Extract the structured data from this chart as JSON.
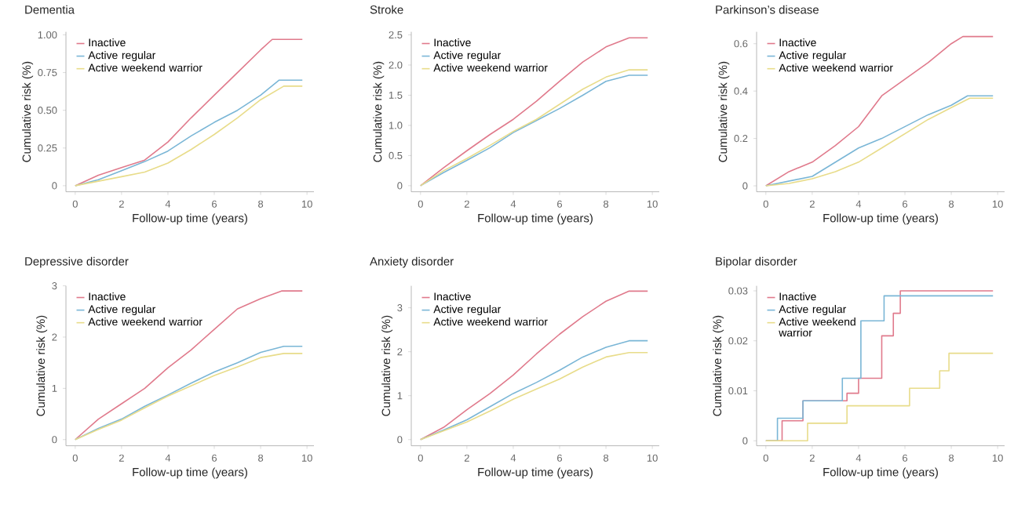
{
  "chart_data": [
    {
      "type": "line",
      "title": "Dementia",
      "xlabel": "Follow-up time (years)",
      "ylabel": "Cumulative risk (%)",
      "legend": "top left",
      "grid": false,
      "xlim": [
        -0.4,
        10.3
      ],
      "xticks": [
        0,
        2,
        4,
        6,
        8,
        10
      ],
      "ylim": [
        -0.04,
        1.02
      ],
      "yticks": [
        0,
        0.25,
        {
          "value": 0.5,
          "label": "0.50"
        },
        0.75,
        {
          "value": 1,
          "label": "1.00"
        }
      ],
      "series": [
        {
          "name": "Inactive",
          "color": "#e07a8c",
          "x": [
            0,
            1,
            2,
            3,
            4,
            5,
            6,
            7,
            8,
            8.5,
            9.8
          ],
          "values": [
            0,
            0.07,
            0.12,
            0.17,
            0.29,
            0.45,
            0.6,
            0.75,
            0.9,
            0.97,
            0.97
          ]
        },
        {
          "name": "Active regular",
          "color": "#7ab6d6",
          "x": [
            0,
            1,
            2,
            3,
            4,
            5,
            6,
            7,
            8,
            8.8,
            9.8
          ],
          "values": [
            0,
            0.04,
            0.1,
            0.16,
            0.23,
            0.33,
            0.42,
            0.5,
            0.6,
            0.7,
            0.7
          ]
        },
        {
          "name": "Active weekend warrior",
          "color": "#e8dc8a",
          "x": [
            0,
            1,
            2,
            3,
            4,
            5,
            6,
            7,
            8,
            9,
            9.8
          ],
          "values": [
            0,
            0.03,
            0.06,
            0.09,
            0.15,
            0.24,
            0.34,
            0.45,
            0.57,
            0.66,
            0.66
          ]
        }
      ]
    },
    {
      "type": "line",
      "title": "Stroke",
      "xlabel": "Follow-up time (years)",
      "ylabel": "Cumulative risk (%)",
      "legend": "top left",
      "grid": false,
      "xlim": [
        -0.4,
        10.3
      ],
      "xticks": [
        0,
        2,
        4,
        6,
        8,
        10
      ],
      "ylim": [
        -0.1,
        2.55
      ],
      "yticks": [
        0,
        0.5,
        {
          "value": 1,
          "label": "1.0"
        },
        1.5,
        {
          "value": 2,
          "label": "2.0"
        },
        2.5
      ],
      "series": [
        {
          "name": "Inactive",
          "color": "#e07a8c",
          "x": [
            0,
            1,
            2,
            3,
            4,
            5,
            6,
            7,
            8,
            9,
            9.8
          ],
          "values": [
            0,
            0.3,
            0.58,
            0.85,
            1.1,
            1.4,
            1.73,
            2.05,
            2.3,
            2.45,
            2.45
          ]
        },
        {
          "name": "Active regular",
          "color": "#7ab6d6",
          "x": [
            0,
            1,
            2,
            3,
            4,
            5,
            6,
            7,
            8,
            9,
            9.8
          ],
          "values": [
            0,
            0.22,
            0.42,
            0.63,
            0.88,
            1.08,
            1.28,
            1.5,
            1.73,
            1.83,
            1.83
          ]
        },
        {
          "name": "Active weekend warrior",
          "color": "#e8dc8a",
          "x": [
            0,
            1,
            2,
            3,
            4,
            5,
            6,
            7,
            8,
            9,
            9.8
          ],
          "values": [
            0,
            0.25,
            0.45,
            0.67,
            0.9,
            1.1,
            1.35,
            1.6,
            1.8,
            1.92,
            1.92
          ]
        }
      ]
    },
    {
      "type": "line",
      "title": "Parkinson’s disease",
      "xlabel": "Follow-up time (years)",
      "ylabel": "Cumulative risk (%)",
      "legend": "top left",
      "grid": false,
      "xlim": [
        -0.4,
        10.3
      ],
      "xticks": [
        0,
        2,
        4,
        6,
        8,
        10
      ],
      "ylim": [
        -0.025,
        0.65
      ],
      "yticks": [
        0,
        0.2,
        0.4,
        0.6
      ],
      "series": [
        {
          "name": "Inactive",
          "color": "#e07a8c",
          "x": [
            0,
            1,
            2,
            3,
            4,
            5,
            6,
            7,
            8,
            8.5,
            9.8
          ],
          "values": [
            0,
            0.06,
            0.1,
            0.17,
            0.25,
            0.38,
            0.45,
            0.52,
            0.6,
            0.63,
            0.63
          ]
        },
        {
          "name": "Active regular",
          "color": "#7ab6d6",
          "x": [
            0,
            1,
            2,
            3,
            4,
            5,
            6,
            7,
            8,
            8.7,
            9.8
          ],
          "values": [
            0,
            0.02,
            0.04,
            0.1,
            0.16,
            0.2,
            0.25,
            0.3,
            0.34,
            0.38,
            0.38
          ]
        },
        {
          "name": "Active weekend warrior",
          "color": "#e8dc8a",
          "x": [
            0,
            1,
            2,
            3,
            4,
            5,
            6,
            7,
            8,
            8.8,
            9.8
          ],
          "values": [
            0,
            0.01,
            0.03,
            0.06,
            0.1,
            0.16,
            0.22,
            0.28,
            0.33,
            0.37,
            0.37
          ]
        }
      ]
    },
    {
      "type": "line",
      "title": "Depressive disorder",
      "xlabel": "Follow-up time (years)",
      "ylabel": "Cumulative risk (%)",
      "legend": "top left",
      "grid": false,
      "xlim": [
        -0.4,
        10.3
      ],
      "xticks": [
        0,
        2,
        4,
        6,
        8,
        10
      ],
      "ylim": [
        -0.12,
        3.0
      ],
      "yticks": [
        0,
        1,
        2,
        3
      ],
      "series": [
        {
          "name": "Inactive",
          "color": "#e07a8c",
          "x": [
            0,
            1,
            2,
            3,
            4,
            5,
            6,
            7,
            8,
            8.9,
            9.8
          ],
          "values": [
            0,
            0.4,
            0.7,
            1.0,
            1.4,
            1.75,
            2.15,
            2.55,
            2.75,
            2.9,
            2.9
          ]
        },
        {
          "name": "Active regular",
          "color": "#7ab6d6",
          "x": [
            0,
            1,
            2,
            3,
            4,
            5,
            6,
            7,
            8,
            9,
            9.8
          ],
          "values": [
            0,
            0.22,
            0.4,
            0.65,
            0.87,
            1.1,
            1.32,
            1.5,
            1.7,
            1.82,
            1.82
          ]
        },
        {
          "name": "Active weekend warrior",
          "color": "#e8dc8a",
          "x": [
            0,
            1,
            2,
            3,
            4,
            5,
            6,
            7,
            8,
            9,
            9.8
          ],
          "values": [
            0,
            0.2,
            0.38,
            0.62,
            0.85,
            1.05,
            1.25,
            1.42,
            1.6,
            1.68,
            1.68
          ]
        }
      ]
    },
    {
      "type": "line",
      "title": "Anxiety disorder",
      "xlabel": "Follow-up time (years)",
      "ylabel": "Cumulative risk (%)",
      "legend": "top left",
      "grid": false,
      "xlim": [
        -0.4,
        10.3
      ],
      "xticks": [
        0,
        2,
        4,
        6,
        8,
        10
      ],
      "ylim": [
        -0.14,
        3.5
      ],
      "yticks": [
        0,
        1,
        2,
        3
      ],
      "series": [
        {
          "name": "Inactive",
          "color": "#e07a8c",
          "x": [
            0,
            1,
            2,
            3,
            4,
            5,
            6,
            7,
            8,
            9,
            9.8
          ],
          "values": [
            0,
            0.28,
            0.68,
            1.05,
            1.47,
            1.95,
            2.4,
            2.8,
            3.15,
            3.38,
            3.38
          ]
        },
        {
          "name": "Active regular",
          "color": "#7ab6d6",
          "x": [
            0,
            1,
            2,
            3,
            4,
            5,
            6,
            7,
            8,
            9,
            9.8
          ],
          "values": [
            0,
            0.22,
            0.45,
            0.75,
            1.05,
            1.3,
            1.58,
            1.88,
            2.1,
            2.25,
            2.25
          ]
        },
        {
          "name": "Active weekend warrior",
          "color": "#e8dc8a",
          "x": [
            0,
            1,
            2,
            3,
            4,
            5,
            6,
            7,
            8,
            9,
            9.8
          ],
          "values": [
            0,
            0.2,
            0.4,
            0.65,
            0.92,
            1.15,
            1.38,
            1.65,
            1.88,
            1.98,
            1.98
          ]
        }
      ]
    },
    {
      "type": "step",
      "title": "Bipolar disorder",
      "xlabel": "Follow-up time (years)",
      "ylabel": "Cumulative risk (%)",
      "legend": "top left",
      "grid": false,
      "xlim": [
        -0.4,
        10.3
      ],
      "xticks": [
        0,
        2,
        4,
        6,
        8,
        10
      ],
      "ylim": [
        -0.001,
        0.031
      ],
      "yticks": [
        0,
        0.01,
        0.02,
        0.03
      ],
      "series": [
        {
          "name": "Inactive",
          "color": "#e07a8c",
          "x": [
            0,
            0.7,
            1.6,
            3.5,
            4.0,
            5.0,
            5.5,
            5.8,
            9.8
          ],
          "values": [
            0,
            0.004,
            0.008,
            0.0095,
            0.0125,
            0.021,
            0.0255,
            0.03,
            0.03
          ]
        },
        {
          "name": "Active regular",
          "color": "#7ab6d6",
          "x": [
            0,
            0.5,
            1.6,
            3.3,
            4.1,
            5.1,
            9.8
          ],
          "values": [
            0,
            0.0045,
            0.008,
            0.0125,
            0.024,
            0.029,
            0.029
          ]
        },
        {
          "name": "Active weekend warrior",
          "color": "#e8dc8a",
          "x": [
            0,
            1.8,
            3.5,
            6.2,
            7.5,
            7.9,
            9.8
          ],
          "values": [
            0,
            0.0035,
            0.007,
            0.0105,
            0.014,
            0.0175,
            0.0175
          ]
        }
      ]
    }
  ]
}
